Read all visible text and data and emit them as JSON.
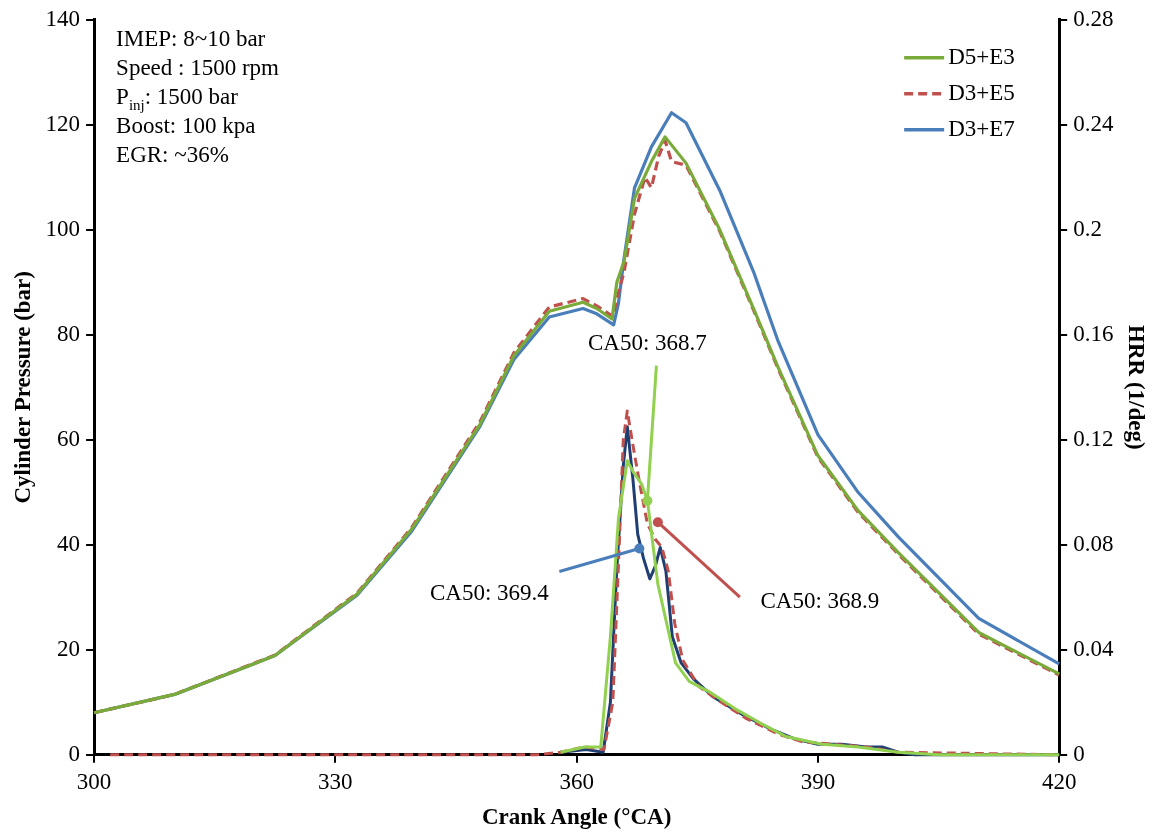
{
  "chart_data": {
    "type": "line",
    "xlabel": "Crank Angle (°CA)",
    "ylabel": "Cylinder Pressure (bar)",
    "y2label": "HRR (1/deg)",
    "xlim": [
      300,
      420
    ],
    "xticks": [
      300,
      330,
      360,
      390,
      420
    ],
    "ylim": [
      0,
      140
    ],
    "yticks": [
      0,
      20,
      40,
      60,
      80,
      100,
      120,
      140
    ],
    "y2lim": [
      0,
      0.28
    ],
    "y2ticks": [
      0,
      0.04,
      0.08,
      0.12,
      0.16,
      0.2,
      0.24,
      0.28
    ],
    "grid": false,
    "legend": "top right",
    "marker": "none",
    "series": [
      {
        "name": "D5+E3",
        "color": "#7aab3a",
        "line_style": "solid",
        "x": [
          300,
          310,
          322.5,
          332.7,
          339.5,
          348,
          352.2,
          356.6,
          360.8,
          362.5,
          364.4,
          365,
          365.9,
          367.2,
          369.3,
          371,
          373.6,
          377.8,
          382,
          385,
          390,
          395,
          400,
          410,
          420
        ],
        "values": [
          8,
          11.5,
          18.9,
          30.6,
          43,
          63,
          76,
          84.5,
          86.2,
          85,
          83,
          90,
          94,
          106,
          113,
          117.7,
          112.7,
          100,
          85,
          74,
          57,
          46.5,
          38.5,
          23.3,
          15.4
        ]
      },
      {
        "name": "D3+E5",
        "color": "#c0504d",
        "line_style": "dashed",
        "x": [
          300,
          310,
          322.5,
          332.7,
          339.5,
          348,
          352.2,
          356.6,
          360.8,
          362.5,
          364.5,
          365.2,
          365.9,
          367.2,
          368.5,
          369.3,
          370.2,
          371,
          371.8,
          373.6,
          377.8,
          382,
          385,
          390,
          395,
          400,
          410,
          420
        ],
        "values": [
          8,
          11.5,
          19,
          30.8,
          43.3,
          63.5,
          76.6,
          85.3,
          86.9,
          85.5,
          83.5,
          88,
          92,
          103,
          110,
          108,
          114,
          117,
          113,
          112.3,
          99.7,
          84.7,
          73.7,
          56.7,
          46.2,
          38.2,
          23,
          15.2
        ]
      },
      {
        "name": "D3+E7",
        "color": "#4a7ebb",
        "line_style": "solid",
        "x": [
          300,
          310,
          322.5,
          332.7,
          339.5,
          348,
          352.2,
          356.6,
          360.8,
          362.5,
          364.6,
          365.2,
          365.9,
          367.2,
          369.3,
          371.8,
          373.6,
          377.8,
          382,
          385,
          390,
          395,
          400,
          410,
          420
        ],
        "values": [
          8,
          11.5,
          18.9,
          30.4,
          42.6,
          62.6,
          75.3,
          83.4,
          85,
          84,
          81.9,
          86,
          94.6,
          108,
          115.8,
          122.3,
          120.4,
          107.5,
          92,
          79,
          61,
          50,
          41.5,
          26,
          17.3
        ]
      },
      {
        "axis": "y2",
        "color": "#92d050",
        "line_style": "solid",
        "x": [
          358,
          361,
          363,
          364.2,
          365.2,
          366.3,
          367,
          368.1,
          368.8,
          370.1,
          372.3,
          374,
          376.5,
          380,
          382.9,
          386,
          390.5,
          395,
          400,
          405,
          420
        ],
        "values": [
          0.001,
          0.003,
          0.003,
          0.045,
          0.09,
          0.112,
          0.108,
          0.103,
          0.097,
          0.065,
          0.035,
          0.028,
          0.024,
          0.017,
          0.012,
          0.007,
          0.004,
          0.003,
          0.001,
          0,
          0
        ]
      },
      {
        "axis": "y2",
        "color": "#c0504d",
        "line_style": "dashed",
        "x": [
          302,
          355,
          358,
          361,
          363.4,
          364.5,
          365.3,
          365.8,
          366.3,
          367,
          367.8,
          368.8,
          369.8,
          370.6,
          371.4,
          372.2,
          373.2,
          375.2,
          378,
          381,
          385,
          388,
          392,
          396,
          400,
          420
        ],
        "values": [
          0,
          0,
          0.001,
          0.003,
          0.002,
          0.02,
          0.08,
          0.12,
          0.131,
          0.118,
          0.104,
          0.088,
          0.082,
          0.079,
          0.07,
          0.05,
          0.036,
          0.026,
          0.02,
          0.014,
          0.008,
          0.005,
          0.004,
          0.003,
          0.001,
          0
        ]
      },
      {
        "axis": "y2",
        "color": "#1f3f73",
        "line_style": "solid",
        "x": [
          358,
          361.2,
          363.3,
          364.2,
          365,
          365.8,
          366.3,
          367,
          367.6,
          368.3,
          369.1,
          369.8,
          370.4,
          371.1,
          371.9,
          373,
          374.5,
          377,
          380.8,
          384,
          387.2,
          390,
          393,
          396,
          398,
          400,
          402,
          420
        ],
        "values": [
          0.001,
          0.002,
          0.001,
          0.02,
          0.071,
          0.11,
          0.125,
          0.105,
          0.084,
          0.075,
          0.067,
          0.072,
          0.079,
          0.07,
          0.045,
          0.035,
          0.029,
          0.022,
          0.015,
          0.01,
          0.006,
          0.004,
          0.004,
          0.003,
          0.003,
          0.001,
          0,
          0
        ]
      }
    ],
    "annotations": [
      "IMEP: 8~10 bar",
      "Speed : 1500 rpm",
      "P$_{inj}$: 1500 bar",
      "Boost: 100 kpa",
      "EGR: ~36%",
      {
        "text": "CA50: 368.7",
        "x": 368.8,
        "y": 48.4
      },
      {
        "text": "CA50: 369.4",
        "x": 367.8,
        "y": 39.3
      },
      {
        "text": "CA50: 368.9",
        "x": 370.1,
        "y": 44.3
      }
    ]
  }
}
